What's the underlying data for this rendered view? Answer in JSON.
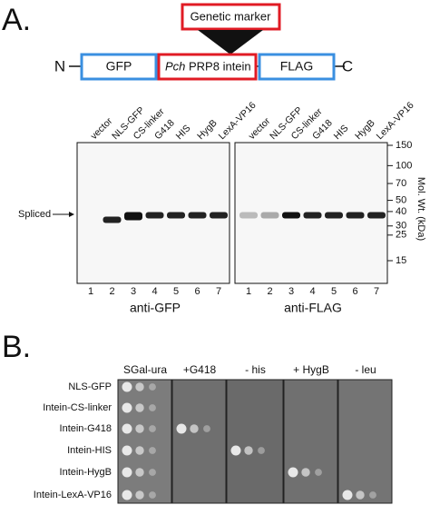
{
  "panel_a": {
    "label": "A.",
    "genetic_marker": "Genetic marker",
    "construct": {
      "n_term": "N",
      "gfp": "GFP",
      "intein_species": "Pch",
      "intein_name": "PRP8 intein",
      "flag": "FLAG",
      "c_term": "C"
    },
    "lanes": [
      "vector",
      "NLS-GFP",
      "CS-linker",
      "G418",
      "HIS",
      "HygB",
      "LexA-VP16"
    ],
    "lane_numbers": [
      1,
      2,
      3,
      4,
      5,
      6,
      7
    ],
    "blots": [
      "anti-GFP",
      "anti-FLAG"
    ],
    "band_label": "Spliced",
    "mw_markers": [
      150,
      100,
      70,
      50,
      40,
      30,
      25,
      15
    ],
    "mw_axis_label": "Mol. Wt. (kDa)"
  },
  "panel_b": {
    "label": "B.",
    "columns": [
      "SGal-ura",
      "+G418",
      "- his",
      "+ HygB",
      "- leu"
    ],
    "rows": [
      "NLS-GFP",
      "Intein-CS-linker",
      "Intein-G418",
      "Intein-HIS",
      "Intein-HygB",
      "Intein-LexA-VP16"
    ]
  }
}
